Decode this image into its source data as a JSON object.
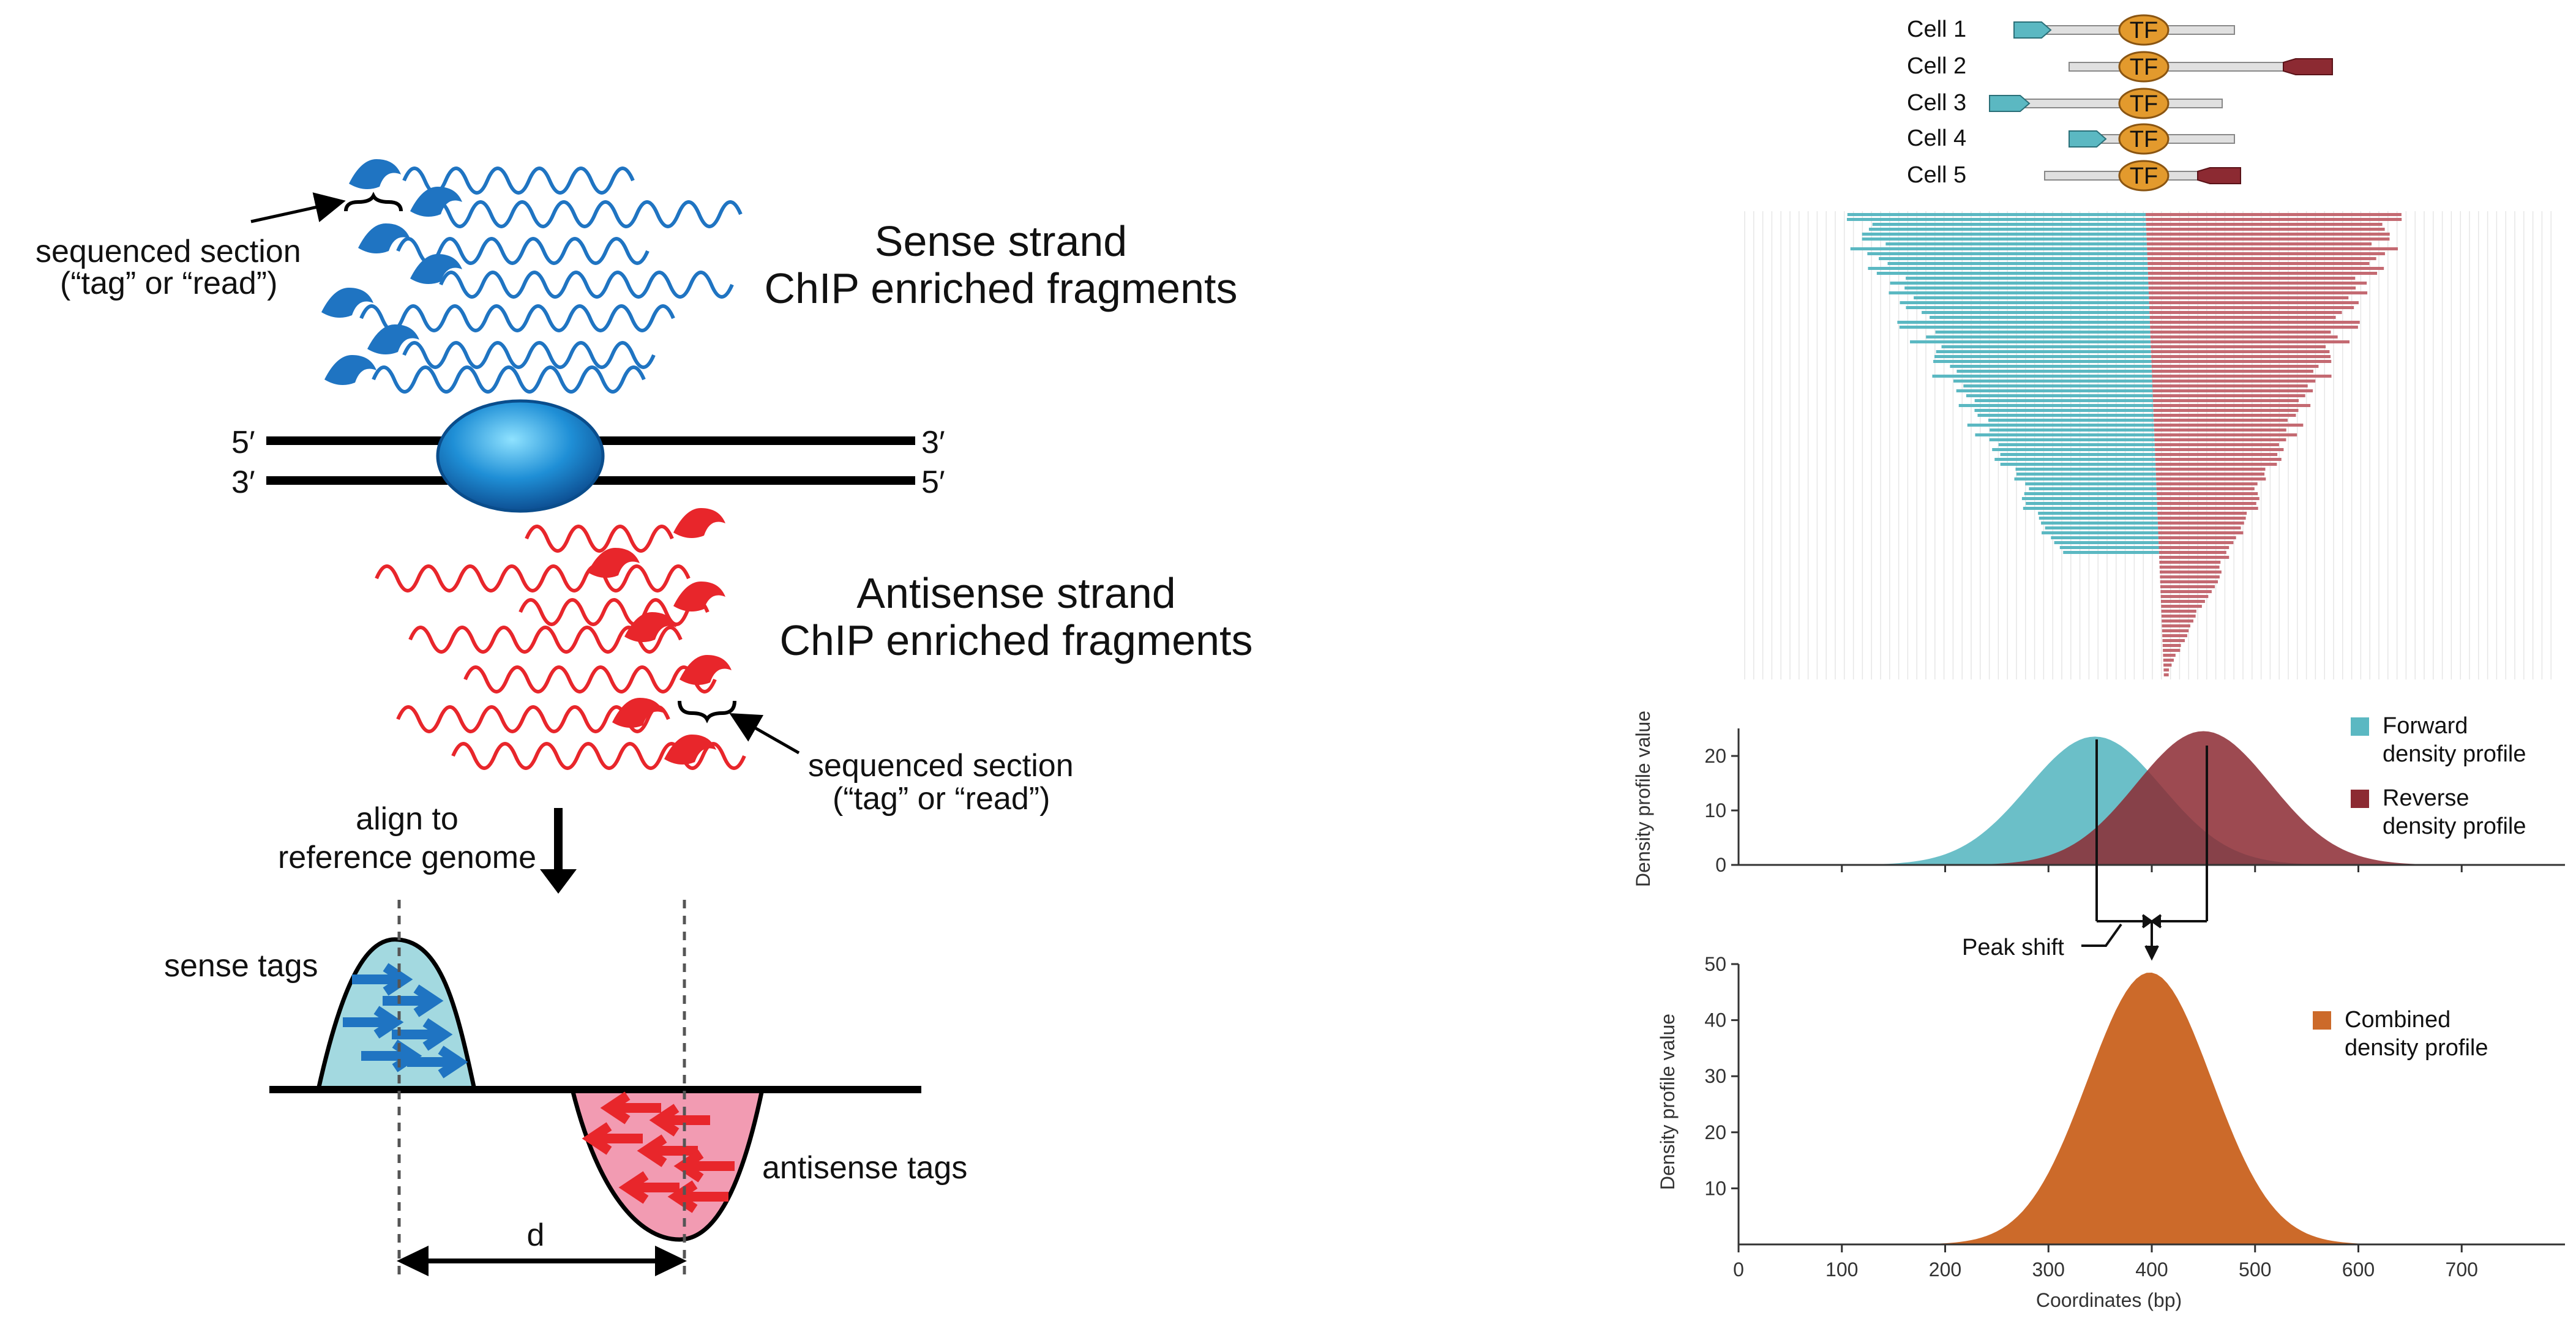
{
  "left_panel": {
    "sense_title_1": "Sense strand",
    "sense_title_2": "ChIP enriched fragments",
    "antisense_title_1": "Antisense strand",
    "antisense_title_2": "ChIP enriched fragments",
    "seq_section_1": "sequenced section",
    "seq_section_2": "(“tag” or  “read”)",
    "seq_section_b1": "sequenced section",
    "seq_section_b2": "(“tag” or  “read”)",
    "dna_5_top": "5′",
    "dna_3_top": "3′",
    "dna_3_bottom": "3′",
    "dna_5_bottom": "5′",
    "align_1": "align to",
    "align_2": "reference genome",
    "sense_tags": "sense tags",
    "antisense_tags": "antisense tags",
    "d_label": "d"
  },
  "right_panel": {
    "cells": [
      "Cell 1",
      "Cell 2",
      "Cell 3",
      "Cell 4",
      "Cell 5"
    ],
    "tf_label": "TF",
    "peak_shift": "Peak shift",
    "colors": {
      "forward": "#5bb8c2",
      "reverse": "#8c2a32",
      "combined": "#cc6a2a",
      "sense": "#1f74c2",
      "antisense": "#e8262b"
    }
  },
  "chart_data": [
    {
      "type": "area",
      "ylabel": "Density profile value",
      "yticks": [
        "0",
        "10",
        "20"
      ],
      "ylim": [
        0,
        25
      ],
      "xlim": [
        0,
        800
      ],
      "series": [
        {
          "name": "Forward density profile",
          "peak_x": 345,
          "peak_y": 23.5,
          "sd": 65
        },
        {
          "name": "Reverse density profile",
          "peak_x": 450,
          "peak_y": 24.5,
          "sd": 65
        }
      ]
    },
    {
      "type": "area",
      "xlabel": "Coordinates (bp)",
      "ylabel": "Density profile value",
      "xticks": [
        "0",
        "100",
        "200",
        "300",
        "400",
        "500",
        "600",
        "700"
      ],
      "yticks": [
        "10",
        "20",
        "30",
        "40",
        "50"
      ],
      "xlim": [
        0,
        800
      ],
      "ylim": [
        0,
        50
      ],
      "series": [
        {
          "name": "Combined density profile",
          "peak_x": 398,
          "peak_y": 48.5,
          "sd": 60
        }
      ]
    }
  ],
  "legend": {
    "forward_1": "Forward",
    "forward_2": "density profile",
    "reverse_1": "Reverse",
    "reverse_2": "density profile",
    "combined_1": "Combined",
    "combined_2": "density profile"
  }
}
